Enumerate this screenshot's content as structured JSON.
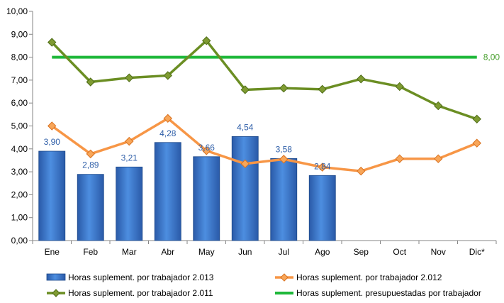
{
  "chart_data": {
    "type": "bar",
    "categories": [
      "Ene",
      "Feb",
      "Mar",
      "Abr",
      "May",
      "Jun",
      "Jul",
      "Ago",
      "Sep",
      "Oct",
      "Nov",
      "Dic*"
    ],
    "ylim": [
      0,
      10
    ],
    "yticks": [
      "0,00",
      "1,00",
      "2,00",
      "3,00",
      "4,00",
      "5,00",
      "6,00",
      "7,00",
      "8,00",
      "9,00",
      "10,00"
    ],
    "grid": false,
    "legend_position": "bottom",
    "series": [
      {
        "name": "Horas suplement. por trabajador 2.013",
        "kind": "bar",
        "color": "#3b74c9",
        "values": [
          3.9,
          2.89,
          3.21,
          4.28,
          3.66,
          4.54,
          3.58,
          2.84,
          null,
          null,
          null,
          null
        ],
        "labels": [
          "3,90",
          "2,89",
          "3,21",
          "4,28",
          "3,66",
          "4,54",
          "3,58",
          "2,84",
          "",
          "",
          "",
          ""
        ]
      },
      {
        "name": "Horas suplement. por trabajador 2.012",
        "kind": "line",
        "color": "#f79646",
        "values": [
          5.0,
          3.78,
          4.33,
          5.33,
          3.92,
          3.35,
          3.55,
          3.2,
          3.03,
          3.57,
          3.57,
          4.25
        ]
      },
      {
        "name": "Horas suplement. por trabajador 2.011",
        "kind": "line",
        "color": "#6b8e23",
        "values": [
          8.65,
          6.92,
          7.1,
          7.2,
          8.72,
          6.58,
          6.65,
          6.6,
          7.05,
          6.72,
          5.88,
          5.3
        ]
      },
      {
        "name": "Horas suplement. presupuestadas por trabajador",
        "kind": "line",
        "color": "#1fb83a",
        "values": [
          8.0,
          8.0,
          8.0,
          8.0,
          8.0,
          8.0,
          8.0,
          8.0,
          8.0,
          8.0,
          8.0,
          8.0
        ],
        "end_label": "8,00"
      }
    ]
  }
}
